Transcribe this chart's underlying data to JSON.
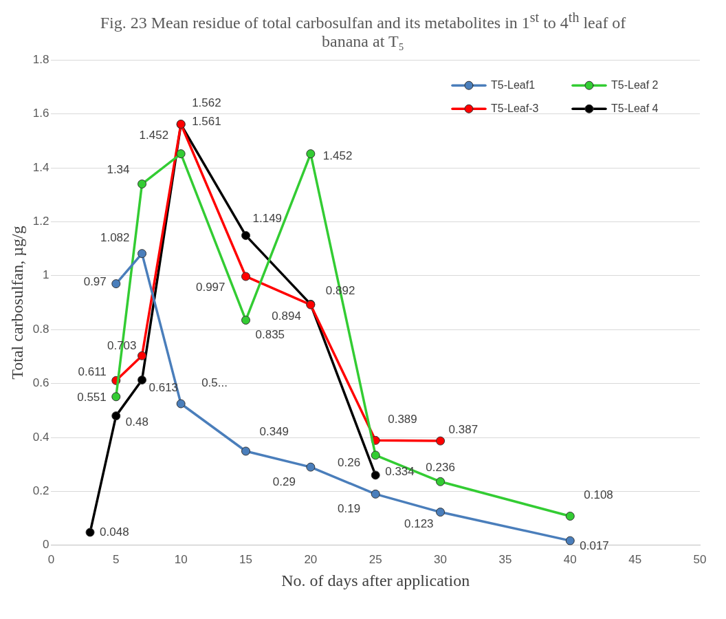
{
  "chart_data": {
    "type": "line",
    "title": "Fig. 23 Mean residue of total carbosulfan and its metabolites in 1$^{st}$ to 4$^{th}$ leaf of banana at T₅",
    "xlabel": "No. of days after application",
    "ylabel": "Total carbosulfan, µg/g",
    "xlim": [
      0,
      50
    ],
    "xticks": [
      0,
      5,
      10,
      15,
      20,
      25,
      30,
      35,
      40,
      45,
      50
    ],
    "ylim": [
      0,
      1.8
    ],
    "yticks": [
      0,
      0.2,
      0.4,
      0.6,
      0.8,
      1,
      1.2,
      1.4,
      1.6,
      1.8
    ],
    "grid": "y",
    "legend": "top right",
    "marker": "circle",
    "line_style": "solid",
    "series": [
      {
        "name": "T5-Leaf1",
        "color": "#4a7ebb",
        "x": [
          5,
          7,
          10,
          15,
          20,
          25,
          30,
          40
        ],
        "values": [
          0.97,
          1.082,
          0.525,
          0.349,
          0.29,
          0.19,
          0.123,
          0.017
        ],
        "value_labels": [
          "0.97",
          "1.082",
          "0.5...",
          "0.349",
          "0.29",
          "0.19",
          "0.123",
          "0.017"
        ]
      },
      {
        "name": "T5-Leaf 2",
        "color": "#33cc33",
        "x": [
          5,
          7,
          10,
          15,
          20,
          25,
          30,
          40
        ],
        "values": [
          0.551,
          1.34,
          1.452,
          0.835,
          1.452,
          0.334,
          0.236,
          0.108
        ],
        "value_labels": [
          "0.551",
          "1.34",
          "1.452",
          "0.835",
          "1.452",
          "0.334",
          "0.236",
          "0.108"
        ]
      },
      {
        "name": "T5-Leaf-3",
        "color": "#ff0000",
        "x": [
          5,
          7,
          10,
          15,
          20,
          25,
          30
        ],
        "values": [
          0.611,
          0.703,
          1.562,
          0.997,
          0.892,
          0.389,
          0.387
        ],
        "value_labels": [
          "0.611",
          "0.703",
          "1.562",
          "0.997",
          "0.892",
          "0.389",
          "0.387"
        ]
      },
      {
        "name": "T5-Leaf 4",
        "color": "#000000",
        "x": [
          3,
          5,
          7,
          10,
          15,
          20,
          25
        ],
        "values": [
          0.048,
          0.48,
          0.613,
          1.561,
          1.149,
          0.894,
          0.26
        ],
        "value_labels": [
          "0.048",
          "0.48",
          "0.613",
          "1.561",
          "1.149",
          "0.894",
          "0.26"
        ]
      }
    ]
  }
}
